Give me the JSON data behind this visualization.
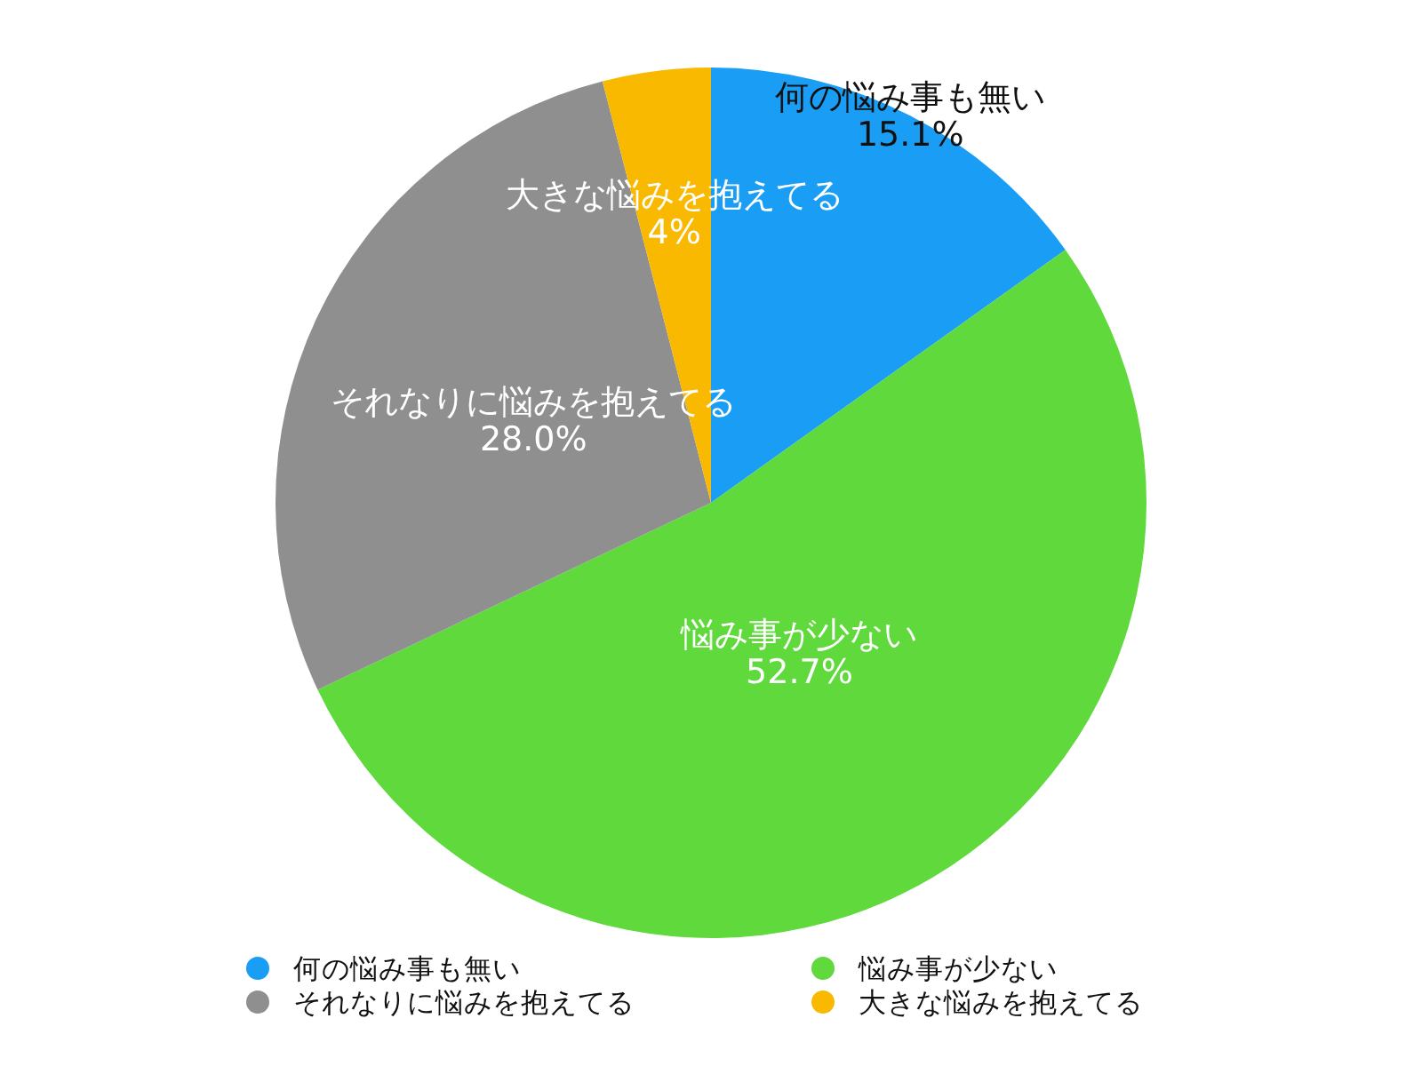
{
  "chart_data": {
    "type": "pie",
    "categories": [
      "何の悩み事も無い",
      "悩み事が少ない",
      "それなりに悩みを抱えてる",
      "大きな悩みを抱えてる"
    ],
    "values": [
      15.1,
      52.7,
      28.0,
      4
    ],
    "value_labels": [
      "15.1%",
      "52.7%",
      "28.0%",
      "4%"
    ],
    "colors": [
      "#1a9ef5",
      "#5fd93c",
      "#8f8f8f",
      "#f9b900"
    ],
    "legend": "bottom"
  }
}
